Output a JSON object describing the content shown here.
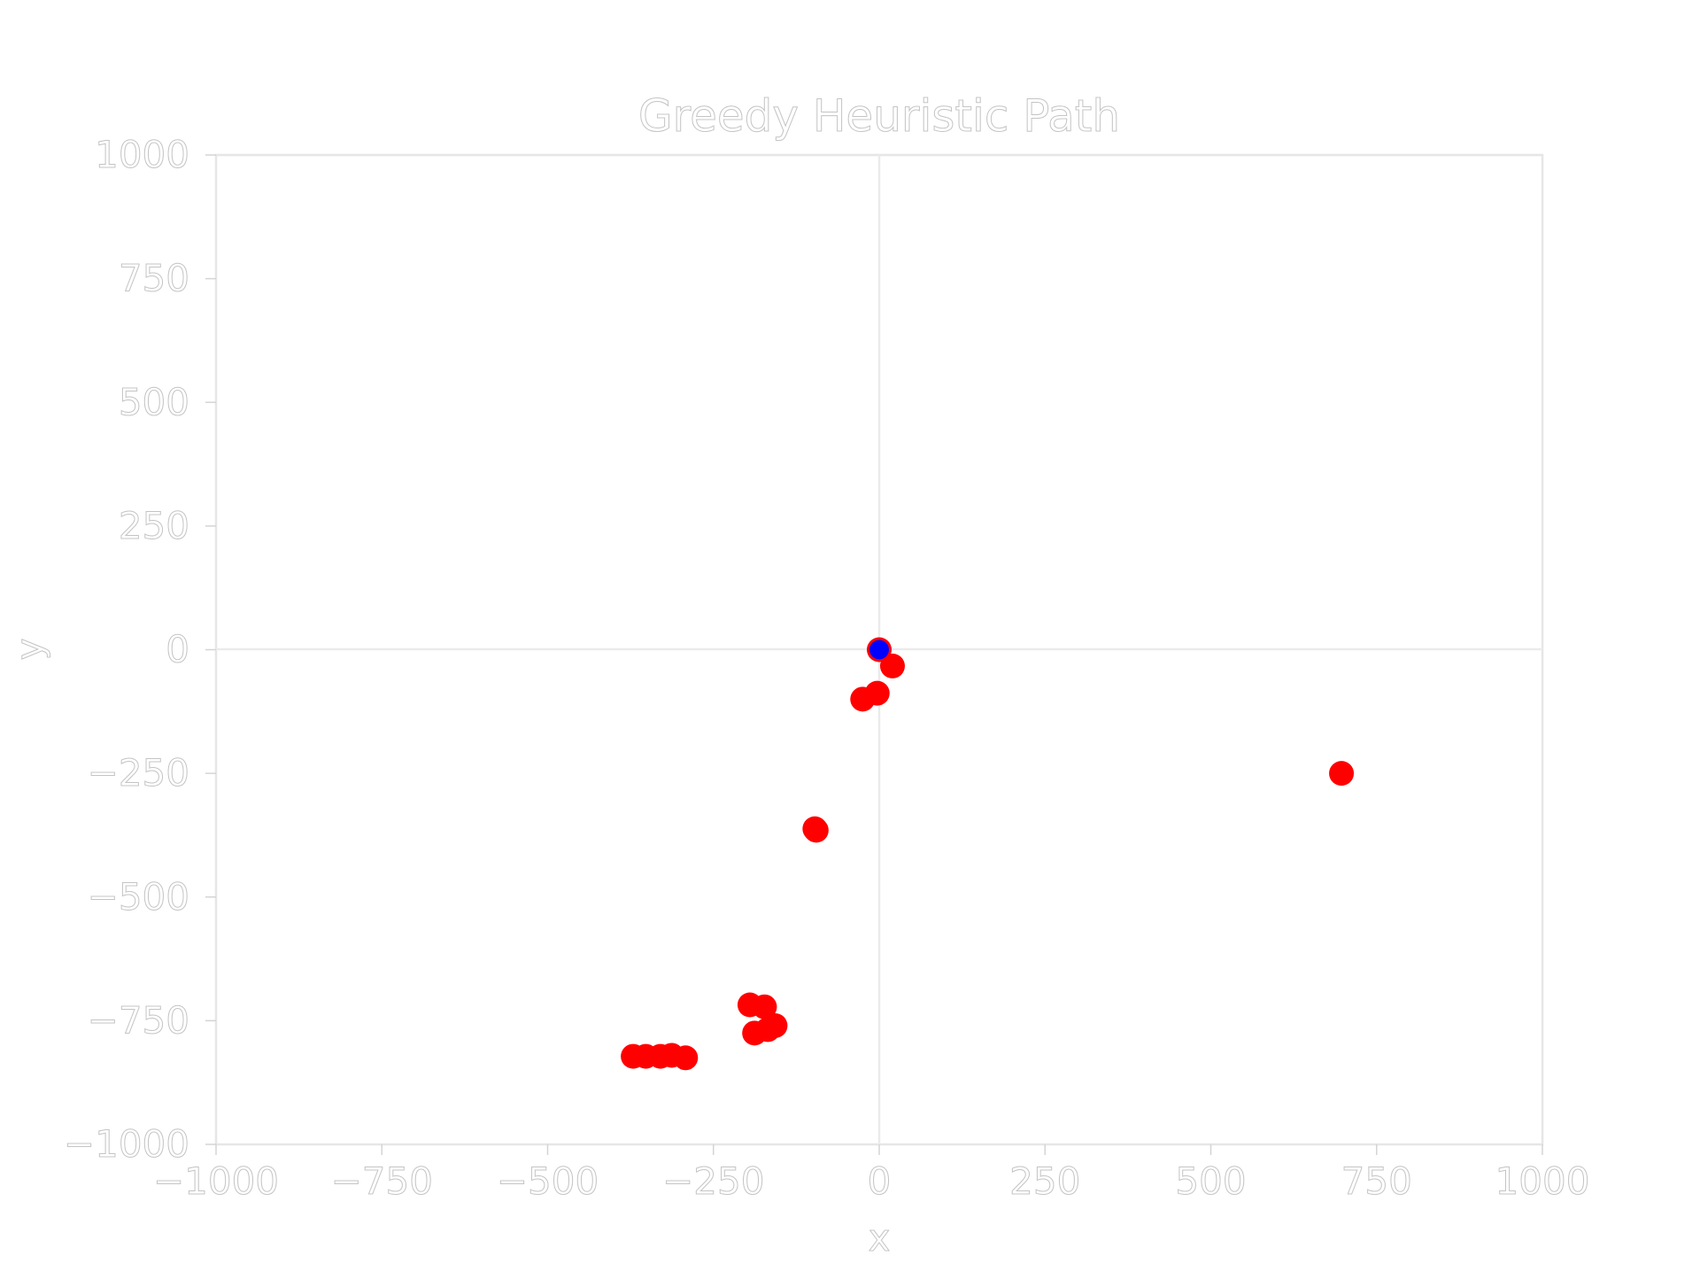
{
  "chart_data": {
    "type": "scatter",
    "title": "Greedy Heuristic Path",
    "xlabel": "x",
    "ylabel": "y",
    "xlim": [
      -1000,
      1000
    ],
    "ylim": [
      -1000,
      1000
    ],
    "xticks": [
      -1000,
      -750,
      -500,
      -250,
      0,
      250,
      500,
      750,
      1000
    ],
    "yticks": [
      -1000,
      -750,
      -500,
      -250,
      0,
      250,
      500,
      750,
      1000
    ],
    "xtick_labels": [
      "−1000",
      "−750",
      "−500",
      "−250",
      "0",
      "250",
      "500",
      "750",
      "1000"
    ],
    "ytick_labels": [
      "−1000",
      "−750",
      "−500",
      "−250",
      "0",
      "250",
      "500",
      "750",
      "1000"
    ],
    "zero_lines": true,
    "grid": false,
    "series": [
      {
        "color": "#ff0000",
        "points": [
          [
            0,
            0
          ],
          [
            20,
            -33
          ],
          [
            -3,
            -88
          ],
          [
            -25,
            -100
          ],
          [
            -95,
            -365
          ],
          [
            -97,
            -362
          ],
          [
            -195,
            -718
          ],
          [
            -173,
            -722
          ],
          [
            -157,
            -760
          ],
          [
            -188,
            -775
          ],
          [
            -168,
            -768
          ],
          [
            -371,
            -822
          ],
          [
            -352,
            -822
          ],
          [
            -330,
            -822
          ],
          [
            -313,
            -820
          ],
          [
            -292,
            -825
          ],
          [
            697,
            -250
          ]
        ]
      },
      {
        "color": "#0000ff",
        "points": [
          [
            0,
            0
          ]
        ]
      }
    ]
  }
}
